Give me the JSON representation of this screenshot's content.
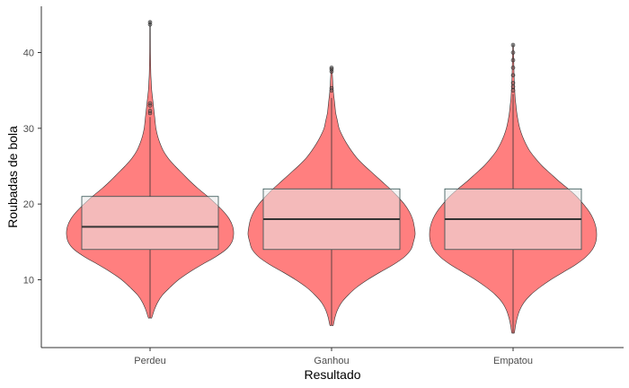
{
  "chart_data": {
    "type": "violin",
    "xlabel": "Resultado",
    "ylabel": "Roubadas de bola",
    "categories": [
      "Perdeu",
      "Ganhou",
      "Empatou"
    ],
    "ylim": [
      2,
      45
    ],
    "yticks": [
      10,
      20,
      30,
      40
    ],
    "grid": false,
    "legend": "none",
    "colors": {
      "violin_fill": "#ff7f7f",
      "box_fill": "#ebebeb",
      "box_fill_opacity": 0.55,
      "outline": "#333333",
      "box_outline": "#2f4f4f"
    },
    "series": [
      {
        "category": "Perdeu",
        "min": 5,
        "max": 44,
        "box": {
          "q1": 14,
          "median": 17,
          "q3": 21,
          "whisker_low": 5,
          "whisker_high": 31.5
        },
        "outliers": [
          32,
          32.3,
          33,
          33.3,
          43.7,
          44
        ],
        "density": [
          [
            5,
            0.02
          ],
          [
            6,
            0.05
          ],
          [
            7,
            0.09
          ],
          [
            8,
            0.15
          ],
          [
            9,
            0.24
          ],
          [
            10,
            0.34
          ],
          [
            11,
            0.47
          ],
          [
            12,
            0.62
          ],
          [
            13,
            0.78
          ],
          [
            14,
            0.91
          ],
          [
            15,
            0.98
          ],
          [
            16,
            1.0
          ],
          [
            17,
            0.99
          ],
          [
            18,
            0.95
          ],
          [
            19,
            0.88
          ],
          [
            20,
            0.79
          ],
          [
            21,
            0.69
          ],
          [
            22,
            0.58
          ],
          [
            23,
            0.48
          ],
          [
            24,
            0.39
          ],
          [
            25,
            0.3
          ],
          [
            26,
            0.22
          ],
          [
            27,
            0.16
          ],
          [
            28,
            0.12
          ],
          [
            29,
            0.09
          ],
          [
            30,
            0.07
          ],
          [
            31,
            0.06
          ],
          [
            32,
            0.05
          ],
          [
            33,
            0.04
          ],
          [
            34,
            0.03
          ],
          [
            35,
            0.02
          ],
          [
            36,
            0.015
          ],
          [
            37,
            0.01
          ],
          [
            38,
            0.008
          ],
          [
            40,
            0.005
          ],
          [
            42,
            0.004
          ],
          [
            44,
            0.003
          ]
        ]
      },
      {
        "category": "Ganhou",
        "min": 4,
        "max": 38,
        "box": {
          "q1": 14,
          "median": 18,
          "q3": 22,
          "whisker_low": 4,
          "whisker_high": 34
        },
        "outliers": [
          35,
          35.3,
          37.5,
          37.8,
          38
        ],
        "density": [
          [
            4,
            0.02
          ],
          [
            5,
            0.04
          ],
          [
            6,
            0.07
          ],
          [
            7,
            0.12
          ],
          [
            8,
            0.2
          ],
          [
            9,
            0.3
          ],
          [
            10,
            0.43
          ],
          [
            11,
            0.58
          ],
          [
            12,
            0.74
          ],
          [
            13,
            0.87
          ],
          [
            14,
            0.95
          ],
          [
            15,
            0.98
          ],
          [
            16,
            1.0
          ],
          [
            17,
            0.99
          ],
          [
            18,
            0.97
          ],
          [
            19,
            0.93
          ],
          [
            20,
            0.87
          ],
          [
            21,
            0.79
          ],
          [
            22,
            0.7
          ],
          [
            23,
            0.6
          ],
          [
            24,
            0.5
          ],
          [
            25,
            0.4
          ],
          [
            26,
            0.31
          ],
          [
            27,
            0.24
          ],
          [
            28,
            0.18
          ],
          [
            29,
            0.13
          ],
          [
            30,
            0.09
          ],
          [
            31,
            0.07
          ],
          [
            32,
            0.05
          ],
          [
            33,
            0.04
          ],
          [
            34,
            0.03
          ],
          [
            35,
            0.02
          ],
          [
            36,
            0.015
          ],
          [
            37,
            0.01
          ],
          [
            38,
            0.005
          ]
        ]
      },
      {
        "category": "Empatou",
        "min": 3,
        "max": 41,
        "box": {
          "q1": 14,
          "median": 18,
          "q3": 22,
          "whisker_low": 3,
          "whisker_high": 34.5
        },
        "outliers": [
          35,
          35.5,
          36,
          37,
          38,
          39,
          40,
          41
        ],
        "density": [
          [
            3,
            0.015
          ],
          [
            4,
            0.03
          ],
          [
            5,
            0.05
          ],
          [
            6,
            0.08
          ],
          [
            7,
            0.13
          ],
          [
            8,
            0.21
          ],
          [
            9,
            0.32
          ],
          [
            10,
            0.45
          ],
          [
            11,
            0.6
          ],
          [
            12,
            0.75
          ],
          [
            13,
            0.87
          ],
          [
            14,
            0.95
          ],
          [
            15,
            0.99
          ],
          [
            16,
            1.0
          ],
          [
            17,
            0.99
          ],
          [
            18,
            0.96
          ],
          [
            19,
            0.91
          ],
          [
            20,
            0.84
          ],
          [
            21,
            0.76
          ],
          [
            22,
            0.66
          ],
          [
            23,
            0.55
          ],
          [
            24,
            0.45
          ],
          [
            25,
            0.35
          ],
          [
            26,
            0.27
          ],
          [
            27,
            0.2
          ],
          [
            28,
            0.15
          ],
          [
            29,
            0.11
          ],
          [
            30,
            0.08
          ],
          [
            31,
            0.06
          ],
          [
            32,
            0.045
          ],
          [
            33,
            0.035
          ],
          [
            34,
            0.025
          ],
          [
            35,
            0.02
          ],
          [
            36,
            0.015
          ],
          [
            37,
            0.012
          ],
          [
            38,
            0.01
          ],
          [
            39,
            0.008
          ],
          [
            40,
            0.006
          ],
          [
            41,
            0.004
          ]
        ]
      }
    ]
  }
}
